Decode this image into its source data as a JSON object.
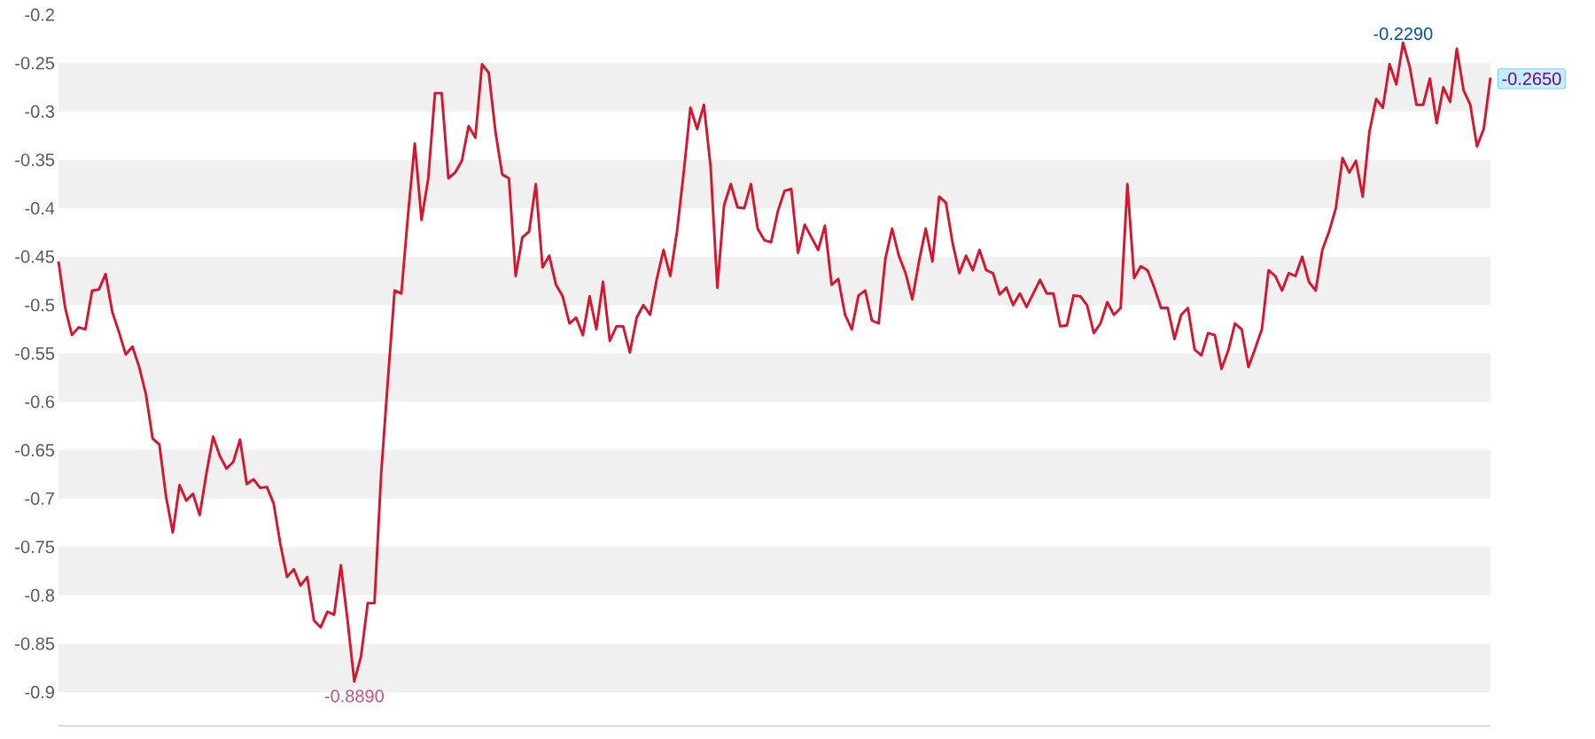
{
  "chart_data": {
    "type": "line",
    "categories": [
      null,
      null,
      null,
      null,
      null,
      null,
      null,
      null,
      null,
      null,
      null,
      null,
      null,
      null,
      null,
      null,
      null,
      null,
      null,
      null,
      null,
      null,
      null,
      null,
      null,
      null,
      null,
      null,
      null,
      null,
      null,
      null,
      null,
      null,
      null,
      null,
      null,
      null,
      null,
      null,
      null,
      null,
      null,
      null,
      null,
      null,
      null,
      null,
      null,
      null,
      null,
      null,
      null,
      null,
      null,
      null,
      null,
      null,
      null,
      null,
      null,
      null,
      null,
      null,
      null,
      null,
      null,
      null,
      null,
      null,
      null,
      null,
      null,
      null,
      null,
      null,
      null,
      null,
      null,
      null,
      null,
      null,
      null,
      null,
      null,
      null,
      null,
      null,
      null,
      null,
      null,
      null,
      null,
      null,
      null,
      null,
      null,
      null,
      null,
      null,
      null,
      null,
      null,
      null,
      null,
      null,
      null,
      null,
      null,
      null,
      null,
      null,
      null,
      null,
      null,
      null,
      null,
      null,
      null,
      null,
      null,
      null,
      null,
      null,
      null,
      null,
      null,
      null,
      null,
      null,
      null,
      null,
      null,
      null,
      null,
      null,
      null,
      null,
      null,
      null,
      null,
      null,
      null,
      null,
      null,
      null,
      null,
      null,
      null,
      null,
      null,
      null,
      null,
      null,
      null,
      null,
      null,
      null,
      null,
      null,
      null,
      null,
      null,
      null,
      null,
      null,
      null,
      null,
      null,
      null,
      null,
      null,
      null,
      null,
      null,
      null,
      null,
      null,
      null,
      null,
      null,
      null,
      null,
      null,
      null,
      null,
      null,
      null,
      null,
      null,
      null,
      null,
      null,
      null,
      null,
      null,
      null,
      null,
      null,
      null,
      null,
      null,
      null,
      null,
      null,
      null,
      null,
      null,
      null,
      null,
      null,
      null,
      null,
      null
    ],
    "series": [
      {
        "color": "#d4162e",
        "values": [
          -0.455,
          -0.503,
          -0.531,
          -0.523,
          -0.525,
          -0.485,
          -0.484,
          -0.468,
          -0.507,
          -0.528,
          -0.551,
          -0.543,
          -0.564,
          -0.592,
          -0.638,
          -0.644,
          -0.698,
          -0.735,
          -0.686,
          -0.702,
          -0.695,
          -0.717,
          -0.674,
          -0.636,
          -0.656,
          -0.669,
          -0.662,
          -0.639,
          -0.685,
          -0.68,
          -0.689,
          -0.688,
          -0.705,
          -0.747,
          -0.781,
          -0.773,
          -0.79,
          -0.781,
          -0.826,
          -0.833,
          -0.817,
          -0.82,
          -0.769,
          -0.826,
          -0.889,
          -0.863,
          -0.808,
          -0.808,
          -0.674,
          -0.577,
          -0.485,
          -0.488,
          -0.406,
          -0.333,
          -0.412,
          -0.369,
          -0.281,
          -0.281,
          -0.369,
          -0.363,
          -0.351,
          -0.315,
          -0.327,
          -0.251,
          -0.26,
          -0.321,
          -0.365,
          -0.369,
          -0.47,
          -0.43,
          -0.424,
          -0.375,
          -0.461,
          -0.449,
          -0.479,
          -0.491,
          -0.519,
          -0.513,
          -0.531,
          -0.491,
          -0.525,
          -0.476,
          -0.537,
          -0.522,
          -0.522,
          -0.549,
          -0.513,
          -0.5,
          -0.51,
          -0.473,
          -0.443,
          -0.47,
          -0.424,
          -0.363,
          -0.296,
          -0.318,
          -0.293,
          -0.357,
          -0.482,
          -0.397,
          -0.375,
          -0.399,
          -0.4,
          -0.375,
          -0.421,
          -0.433,
          -0.435,
          -0.403,
          -0.382,
          -0.38,
          -0.446,
          -0.417,
          -0.43,
          -0.443,
          -0.418,
          -0.479,
          -0.473,
          -0.51,
          -0.525,
          -0.49,
          -0.485,
          -0.516,
          -0.519,
          -0.452,
          -0.421,
          -0.449,
          -0.467,
          -0.494,
          -0.455,
          -0.421,
          -0.455,
          -0.388,
          -0.394,
          -0.436,
          -0.467,
          -0.449,
          -0.464,
          -0.443,
          -0.464,
          -0.467,
          -0.489,
          -0.482,
          -0.5,
          -0.488,
          -0.502,
          -0.488,
          -0.474,
          -0.488,
          -0.488,
          -0.522,
          -0.521,
          -0.49,
          -0.491,
          -0.5,
          -0.529,
          -0.519,
          -0.497,
          -0.51,
          -0.503,
          -0.375,
          -0.472,
          -0.46,
          -0.464,
          -0.482,
          -0.503,
          -0.503,
          -0.535,
          -0.51,
          -0.503,
          -0.546,
          -0.552,
          -0.529,
          -0.531,
          -0.566,
          -0.547,
          -0.519,
          -0.525,
          -0.564,
          -0.545,
          -0.525,
          -0.464,
          -0.47,
          -0.485,
          -0.467,
          -0.47,
          -0.45,
          -0.476,
          -0.485,
          -0.443,
          -0.424,
          -0.4,
          -0.348,
          -0.363,
          -0.351,
          -0.388,
          -0.321,
          -0.287,
          -0.296,
          -0.251,
          -0.272,
          -0.229,
          -0.254,
          -0.293,
          -0.293,
          -0.266,
          -0.312,
          -0.275,
          -0.29,
          -0.235,
          -0.278,
          -0.293,
          -0.336,
          -0.318,
          -0.265
        ]
      }
    ],
    "ylim": [
      -0.935,
      -0.2
    ],
    "yticks": [
      -0.9,
      -0.85,
      -0.8,
      -0.75,
      -0.7,
      -0.65,
      -0.6,
      -0.55,
      -0.5,
      -0.45,
      -0.4,
      -0.35,
      -0.3,
      -0.25,
      -0.2
    ],
    "bands": [
      {
        "axis": "y",
        "from": -0.3,
        "to": -0.25,
        "color": "#f0f0f0"
      },
      {
        "axis": "y",
        "from": -0.4,
        "to": -0.35,
        "color": "#f0f0f0"
      },
      {
        "axis": "y",
        "from": -0.5,
        "to": -0.45,
        "color": "#f0f0f0"
      },
      {
        "axis": "y",
        "from": -0.6,
        "to": -0.55,
        "color": "#f0f0f0"
      },
      {
        "axis": "y",
        "from": -0.7,
        "to": -0.65,
        "color": "#f0f0f0"
      },
      {
        "axis": "y",
        "from": -0.8,
        "to": -0.75,
        "color": "#f0f0f0"
      },
      {
        "axis": "y",
        "from": -0.9,
        "to": -0.85,
        "color": "#f0f0f0"
      }
    ],
    "tick_labels": "y",
    "annotations": [
      {
        "text": "-0.8890",
        "y": -0.889
      },
      {
        "text": "-0.2290",
        "y": -0.229
      },
      "-0.2650"
    ]
  }
}
